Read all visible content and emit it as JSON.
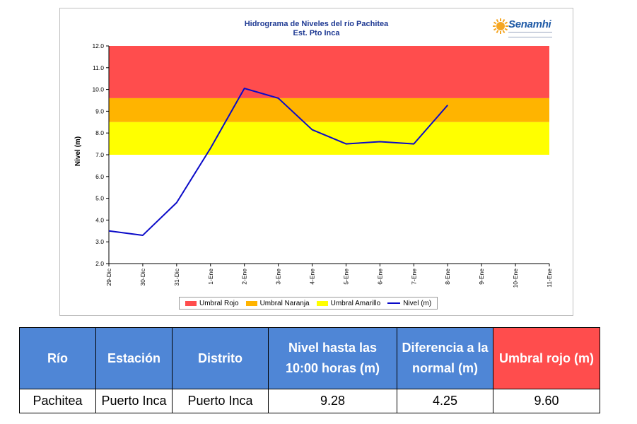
{
  "chart_data": {
    "type": "line",
    "title": "Hidrograma de Niveles del río Pachitea",
    "subtitle": "Est. Pto Inca",
    "ylabel": "Nivel (m)",
    "ylim": [
      2.0,
      12.0
    ],
    "yticks": [
      "2.0",
      "3.0",
      "4.0",
      "5.0",
      "6.0",
      "7.0",
      "8.0",
      "9.0",
      "10.0",
      "11.0",
      "12.0"
    ],
    "categories": [
      "29-Dic",
      "30-Dic",
      "31-Dic",
      "1-Ene",
      "2-Ene",
      "3-Ene",
      "4-Ene",
      "5-Ene",
      "6-Ene",
      "7-Ene",
      "8-Ene",
      "9-Ene",
      "10-Ene",
      "11-Ene"
    ],
    "series": [
      {
        "name": "Nivel (m)",
        "color": "#0a0ac8",
        "values": [
          3.5,
          3.3,
          4.8,
          7.3,
          10.05,
          9.6,
          8.15,
          7.5,
          7.6,
          7.5,
          9.28,
          null,
          null,
          null
        ]
      }
    ],
    "bands": [
      {
        "name": "Umbral Rojo",
        "color": "#ff4d4d",
        "from": 9.6,
        "to": 12.0
      },
      {
        "name": "Umbral Naranja",
        "color": "#ffb400",
        "from": 8.5,
        "to": 9.6
      },
      {
        "name": "Umbral Amarillo",
        "color": "#ffff00",
        "from": 7.0,
        "to": 8.5
      }
    ],
    "legend_position": "bottom",
    "grid": false
  },
  "logo": {
    "text": "Senamhi",
    "color": "#1f5aa6",
    "sun_color": "#f5a623"
  },
  "table": {
    "headers": [
      "Río",
      "Estación",
      "Distrito",
      "Nivel hasta las 10:00 horas (m)",
      "Diferencia a la normal (m)",
      "Umbral rojo (m)"
    ],
    "header_color": "#4f86d6",
    "threshold_header_color": "#ff4d4d",
    "rows": [
      [
        "Pachitea",
        "Puerto Inca",
        "Puerto Inca",
        "9.28",
        "4.25",
        "9.60"
      ]
    ]
  }
}
